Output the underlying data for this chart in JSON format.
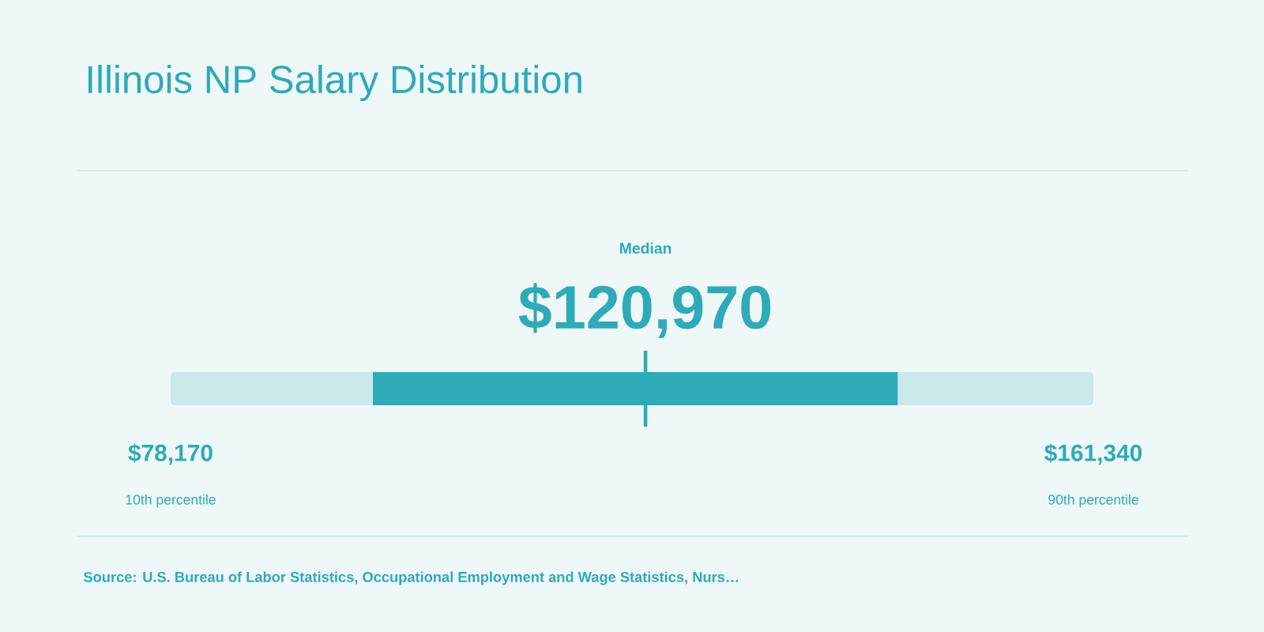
{
  "chart_data": {
    "type": "bar",
    "orientation": "horizontal",
    "title": "Illinois NP Salary Distribution",
    "categories": [
      null
    ],
    "series": [
      {
        "color": "#cbe8eb",
        "values": [
          83170
        ],
        "base": [
          78170
        ]
      },
      {
        "color": "#2eaab9",
        "values": [
          47300
        ],
        "base": [
          96400
        ]
      }
    ],
    "xlim": [
      78170,
      161340
    ],
    "xticks": [
      {
        "value": 78170,
        "label": "$78,170"
      },
      {
        "value": 161340,
        "label": "$161,340"
      }
    ],
    "ref_lines": [
      {
        "axis": "x",
        "value": 120970,
        "label": "Median",
        "color": "#2eaab9"
      }
    ],
    "annotations": [
      "$120,970",
      "10th percentile",
      "90th percentile",
      "Source: U.S. Bureau of Labor Statistics, Occupational Employment and Wage Statistics, Nurs…"
    ],
    "grid": false
  }
}
